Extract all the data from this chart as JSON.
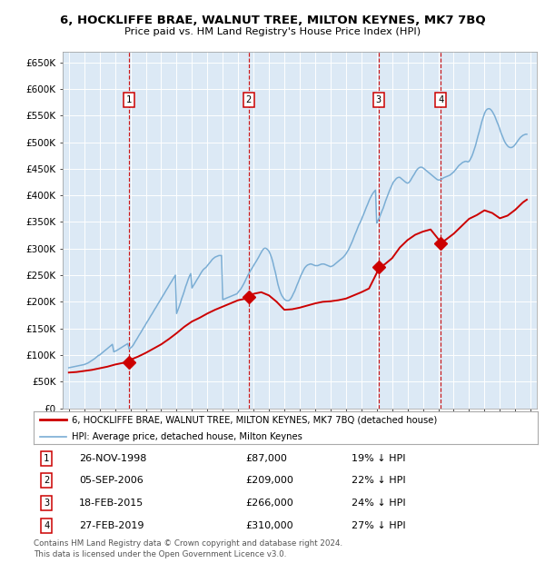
{
  "title": "6, HOCKLIFFE BRAE, WALNUT TREE, MILTON KEYNES, MK7 7BQ",
  "subtitle": "Price paid vs. HM Land Registry's House Price Index (HPI)",
  "ylim": [
    0,
    670000
  ],
  "yticks": [
    0,
    50000,
    100000,
    150000,
    200000,
    250000,
    300000,
    350000,
    400000,
    450000,
    500000,
    550000,
    600000,
    650000
  ],
  "ytick_labels": [
    "£0",
    "£50K",
    "£100K",
    "£150K",
    "£200K",
    "£250K",
    "£300K",
    "£350K",
    "£400K",
    "£450K",
    "£500K",
    "£550K",
    "£600K",
    "£650K"
  ],
  "xlim_start": 1994.6,
  "xlim_end": 2025.4,
  "sale_color": "#cc0000",
  "hpi_color": "#7aadd4",
  "plot_bg_color": "#dce9f5",
  "grid_color": "#ffffff",
  "vline_color": "#cc0000",
  "transactions": [
    {
      "date_year": 1998.9,
      "price": 87000,
      "label": "1",
      "date_str": "26-NOV-1998",
      "pct": "19%"
    },
    {
      "date_year": 2006.67,
      "price": 209000,
      "label": "2",
      "date_str": "05-SEP-2006",
      "pct": "22%"
    },
    {
      "date_year": 2015.12,
      "price": 266000,
      "label": "3",
      "date_str": "18-FEB-2015",
      "pct": "24%"
    },
    {
      "date_year": 2019.15,
      "price": 310000,
      "label": "4",
      "date_str": "27-FEB-2019",
      "pct": "27%"
    }
  ],
  "hpi_years": [
    1995.0,
    1995.08,
    1995.17,
    1995.25,
    1995.33,
    1995.42,
    1995.5,
    1995.58,
    1995.67,
    1995.75,
    1995.83,
    1995.92,
    1996.0,
    1996.08,
    1996.17,
    1996.25,
    1996.33,
    1996.42,
    1996.5,
    1996.58,
    1996.67,
    1996.75,
    1996.83,
    1996.92,
    1997.0,
    1997.08,
    1997.17,
    1997.25,
    1997.33,
    1997.42,
    1997.5,
    1997.58,
    1997.67,
    1997.75,
    1997.83,
    1997.92,
    1998.0,
    1998.08,
    1998.17,
    1998.25,
    1998.33,
    1998.42,
    1998.5,
    1998.58,
    1998.67,
    1998.75,
    1998.83,
    1998.92,
    1999.0,
    1999.08,
    1999.17,
    1999.25,
    1999.33,
    1999.42,
    1999.5,
    1999.58,
    1999.67,
    1999.75,
    1999.83,
    1999.92,
    2000.0,
    2000.08,
    2000.17,
    2000.25,
    2000.33,
    2000.42,
    2000.5,
    2000.58,
    2000.67,
    2000.75,
    2000.83,
    2000.92,
    2001.0,
    2001.08,
    2001.17,
    2001.25,
    2001.33,
    2001.42,
    2001.5,
    2001.58,
    2001.67,
    2001.75,
    2001.83,
    2001.92,
    2002.0,
    2002.08,
    2002.17,
    2002.25,
    2002.33,
    2002.42,
    2002.5,
    2002.58,
    2002.67,
    2002.75,
    2002.83,
    2002.92,
    2003.0,
    2003.08,
    2003.17,
    2003.25,
    2003.33,
    2003.42,
    2003.5,
    2003.58,
    2003.67,
    2003.75,
    2003.83,
    2003.92,
    2004.0,
    2004.08,
    2004.17,
    2004.25,
    2004.33,
    2004.42,
    2004.5,
    2004.58,
    2004.67,
    2004.75,
    2004.83,
    2004.92,
    2005.0,
    2005.08,
    2005.17,
    2005.25,
    2005.33,
    2005.42,
    2005.5,
    2005.58,
    2005.67,
    2005.75,
    2005.83,
    2005.92,
    2006.0,
    2006.08,
    2006.17,
    2006.25,
    2006.33,
    2006.42,
    2006.5,
    2006.58,
    2006.67,
    2006.75,
    2006.83,
    2006.92,
    2007.0,
    2007.08,
    2007.17,
    2007.25,
    2007.33,
    2007.42,
    2007.5,
    2007.58,
    2007.67,
    2007.75,
    2007.83,
    2007.92,
    2008.0,
    2008.08,
    2008.17,
    2008.25,
    2008.33,
    2008.42,
    2008.5,
    2008.58,
    2008.67,
    2008.75,
    2008.83,
    2008.92,
    2009.0,
    2009.08,
    2009.17,
    2009.25,
    2009.33,
    2009.42,
    2009.5,
    2009.58,
    2009.67,
    2009.75,
    2009.83,
    2009.92,
    2010.0,
    2010.08,
    2010.17,
    2010.25,
    2010.33,
    2010.42,
    2010.5,
    2010.58,
    2010.67,
    2010.75,
    2010.83,
    2010.92,
    2011.0,
    2011.08,
    2011.17,
    2011.25,
    2011.33,
    2011.42,
    2011.5,
    2011.58,
    2011.67,
    2011.75,
    2011.83,
    2011.92,
    2012.0,
    2012.08,
    2012.17,
    2012.25,
    2012.33,
    2012.42,
    2012.5,
    2012.58,
    2012.67,
    2012.75,
    2012.83,
    2012.92,
    2013.0,
    2013.08,
    2013.17,
    2013.25,
    2013.33,
    2013.42,
    2013.5,
    2013.58,
    2013.67,
    2013.75,
    2013.83,
    2013.92,
    2014.0,
    2014.08,
    2014.17,
    2014.25,
    2014.33,
    2014.42,
    2014.5,
    2014.58,
    2014.67,
    2014.75,
    2014.83,
    2014.92,
    2015.0,
    2015.08,
    2015.17,
    2015.25,
    2015.33,
    2015.42,
    2015.5,
    2015.58,
    2015.67,
    2015.75,
    2015.83,
    2015.92,
    2016.0,
    2016.08,
    2016.17,
    2016.25,
    2016.33,
    2016.42,
    2016.5,
    2016.58,
    2016.67,
    2016.75,
    2016.83,
    2016.92,
    2017.0,
    2017.08,
    2017.17,
    2017.25,
    2017.33,
    2017.42,
    2017.5,
    2017.58,
    2017.67,
    2017.75,
    2017.83,
    2017.92,
    2018.0,
    2018.08,
    2018.17,
    2018.25,
    2018.33,
    2018.42,
    2018.5,
    2018.58,
    2018.67,
    2018.75,
    2018.83,
    2018.92,
    2019.0,
    2019.08,
    2019.17,
    2019.25,
    2019.33,
    2019.42,
    2019.5,
    2019.58,
    2019.67,
    2019.75,
    2019.83,
    2019.92,
    2020.0,
    2020.08,
    2020.17,
    2020.25,
    2020.33,
    2020.42,
    2020.5,
    2020.58,
    2020.67,
    2020.75,
    2020.83,
    2020.92,
    2021.0,
    2021.08,
    2021.17,
    2021.25,
    2021.33,
    2021.42,
    2021.5,
    2021.58,
    2021.67,
    2021.75,
    2021.83,
    2021.92,
    2022.0,
    2022.08,
    2022.17,
    2022.25,
    2022.33,
    2022.42,
    2022.5,
    2022.58,
    2022.67,
    2022.75,
    2022.83,
    2022.92,
    2023.0,
    2023.08,
    2023.17,
    2023.25,
    2023.33,
    2023.42,
    2023.5,
    2023.58,
    2023.67,
    2023.75,
    2023.83,
    2023.92,
    2024.0,
    2024.08,
    2024.17,
    2024.25,
    2024.33,
    2024.42,
    2024.5,
    2024.58,
    2024.67,
    2024.75
  ],
  "hpi_values": [
    76000,
    76500,
    77000,
    77500,
    78000,
    78500,
    79000,
    79500,
    80000,
    80500,
    81000,
    81500,
    82000,
    83000,
    84000,
    85000,
    86500,
    88000,
    89500,
    91000,
    93000,
    95000,
    97000,
    99000,
    100000,
    102000,
    104000,
    106000,
    108000,
    110000,
    112000,
    114000,
    116000,
    118000,
    120000,
    106000,
    107000,
    108000,
    109500,
    111000,
    112500,
    114000,
    115500,
    117000,
    118500,
    120000,
    121500,
    111000,
    113000,
    115000,
    118000,
    122000,
    126000,
    130000,
    134000,
    138000,
    142000,
    146000,
    150000,
    154000,
    158000,
    162000,
    166000,
    170000,
    174000,
    178000,
    182000,
    186000,
    190000,
    194000,
    198000,
    202000,
    206000,
    210000,
    214000,
    218000,
    222000,
    226000,
    230000,
    234000,
    238000,
    242000,
    246000,
    250000,
    178000,
    184000,
    191000,
    198000,
    206000,
    213000,
    220000,
    228000,
    235000,
    242000,
    248000,
    253000,
    226000,
    230000,
    234000,
    238000,
    242000,
    246000,
    250000,
    254000,
    258000,
    261000,
    263000,
    265000,
    268000,
    271000,
    274000,
    277000,
    280000,
    282000,
    284000,
    285000,
    286000,
    287000,
    287000,
    287000,
    204000,
    205000,
    206000,
    207000,
    208000,
    209000,
    210000,
    211000,
    212000,
    213000,
    214000,
    215000,
    218000,
    221000,
    224000,
    228000,
    232000,
    237000,
    242000,
    247000,
    252000,
    256000,
    260000,
    264000,
    268000,
    272000,
    276000,
    280000,
    284000,
    289000,
    293000,
    297000,
    300000,
    301000,
    300000,
    298000,
    295000,
    290000,
    283000,
    275000,
    265000,
    255000,
    244000,
    233000,
    224000,
    217000,
    212000,
    208000,
    205000,
    203000,
    202000,
    202000,
    203000,
    206000,
    210000,
    215000,
    220000,
    226000,
    232000,
    238000,
    244000,
    250000,
    255000,
    260000,
    264000,
    267000,
    269000,
    270000,
    271000,
    271000,
    270000,
    269000,
    268000,
    268000,
    268000,
    269000,
    270000,
    271000,
    271000,
    271000,
    270000,
    269000,
    268000,
    267000,
    266000,
    267000,
    268000,
    270000,
    272000,
    274000,
    276000,
    278000,
    280000,
    282000,
    284000,
    287000,
    290000,
    294000,
    298000,
    303000,
    308000,
    314000,
    320000,
    326000,
    332000,
    338000,
    344000,
    349000,
    354000,
    360000,
    366000,
    372000,
    378000,
    384000,
    390000,
    395000,
    400000,
    404000,
    407000,
    410000,
    348000,
    353000,
    358000,
    364000,
    370000,
    376000,
    383000,
    390000,
    397000,
    403000,
    409000,
    415000,
    420000,
    425000,
    428000,
    431000,
    433000,
    434000,
    434000,
    432000,
    430000,
    428000,
    426000,
    424000,
    423000,
    424000,
    427000,
    431000,
    435000,
    439000,
    443000,
    447000,
    450000,
    452000,
    453000,
    453000,
    452000,
    450000,
    448000,
    446000,
    444000,
    442000,
    440000,
    438000,
    436000,
    434000,
    432000,
    430000,
    429000,
    429000,
    430000,
    431000,
    433000,
    434000,
    435000,
    436000,
    437000,
    438000,
    440000,
    442000,
    444000,
    447000,
    450000,
    453000,
    456000,
    458000,
    460000,
    462000,
    463000,
    464000,
    464000,
    463000,
    464000,
    468000,
    473000,
    479000,
    486000,
    494000,
    503000,
    512000,
    521000,
    530000,
    539000,
    547000,
    554000,
    559000,
    562000,
    563000,
    563000,
    561000,
    558000,
    554000,
    549000,
    543000,
    537000,
    531000,
    524000,
    517000,
    511000,
    505000,
    500000,
    496000,
    493000,
    491000,
    490000,
    490000,
    491000,
    493000,
    496000,
    499000,
    503000,
    506000,
    509000,
    511000,
    513000,
    514000,
    515000,
    515000
  ],
  "sold_years": [
    1995.0,
    1995.5,
    1996.0,
    1996.5,
    1997.0,
    1997.5,
    1998.0,
    1998.5,
    1998.9,
    1999.0,
    1999.5,
    2000.0,
    2000.5,
    2001.0,
    2001.5,
    2002.0,
    2002.5,
    2003.0,
    2003.5,
    2004.0,
    2004.5,
    2005.0,
    2005.5,
    2006.0,
    2006.5,
    2006.67,
    2007.0,
    2007.5,
    2008.0,
    2008.5,
    2009.0,
    2009.5,
    2010.0,
    2010.5,
    2011.0,
    2011.5,
    2012.0,
    2012.5,
    2013.0,
    2013.5,
    2014.0,
    2014.5,
    2015.0,
    2015.12,
    2015.5,
    2016.0,
    2016.5,
    2017.0,
    2017.5,
    2018.0,
    2018.5,
    2019.0,
    2019.15,
    2019.5,
    2020.0,
    2020.5,
    2021.0,
    2021.5,
    2022.0,
    2022.5,
    2023.0,
    2023.5,
    2024.0,
    2024.5,
    2024.75
  ],
  "sold_values": [
    67000,
    68000,
    70000,
    72000,
    75000,
    78000,
    82000,
    85000,
    87000,
    91000,
    97000,
    104000,
    112000,
    120000,
    130000,
    141000,
    153000,
    163000,
    170000,
    178000,
    185000,
    191000,
    197000,
    203000,
    206000,
    209000,
    215000,
    218000,
    212000,
    200000,
    185000,
    186000,
    189000,
    193000,
    197000,
    200000,
    201000,
    203000,
    206000,
    212000,
    218000,
    225000,
    254000,
    266000,
    270000,
    282000,
    302000,
    316000,
    326000,
    332000,
    336000,
    318000,
    310000,
    317000,
    328000,
    342000,
    356000,
    363000,
    372000,
    367000,
    357000,
    362000,
    373000,
    387000,
    392000
  ],
  "legend_label_sale": "6, HOCKLIFFE BRAE, WALNUT TREE, MILTON KEYNES, MK7 7BQ (detached house)",
  "legend_label_hpi": "HPI: Average price, detached house, Milton Keynes",
  "footer_text": "Contains HM Land Registry data © Crown copyright and database right 2024.\nThis data is licensed under the Open Government Licence v3.0."
}
